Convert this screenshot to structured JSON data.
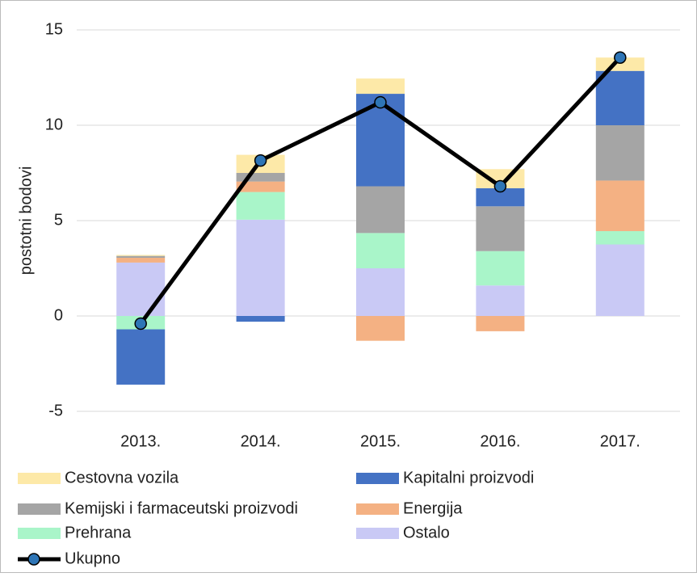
{
  "chart_data": {
    "type": "bar",
    "stacked": true,
    "ylabel": "postotni bodovi",
    "categories": [
      "2013.",
      "2014.",
      "2015.",
      "2016.",
      "2017."
    ],
    "series": [
      {
        "name": "Cestovna vozila",
        "type": "bar",
        "color": "#fde9a8",
        "values": [
          0.05,
          0.95,
          0.8,
          1.0,
          0.7
        ]
      },
      {
        "name": "Kapitalni proizvodi",
        "type": "bar",
        "color": "#4472c4",
        "values": [
          -2.9,
          -0.3,
          4.85,
          0.95,
          2.85
        ]
      },
      {
        "name": "Kemijski i farmaceutski proizvodi",
        "type": "bar",
        "color": "#a5a5a5",
        "values": [
          0.1,
          0.45,
          2.45,
          2.35,
          2.9
        ]
      },
      {
        "name": "Energija",
        "type": "bar",
        "color": "#f4b183",
        "values": [
          0.25,
          0.55,
          -1.3,
          -0.8,
          2.65
        ]
      },
      {
        "name": "Prehrana",
        "type": "bar",
        "color": "#a9f5c9",
        "values": [
          -0.7,
          1.45,
          1.85,
          1.8,
          0.7
        ]
      },
      {
        "name": "Ostalo",
        "type": "bar",
        "color": "#c9c9f5",
        "values": [
          2.8,
          5.05,
          2.5,
          1.6,
          3.75
        ]
      },
      {
        "name": "Ukupno",
        "type": "line",
        "color": "#000000",
        "marker_color": "#2e75b6",
        "values": [
          -0.4,
          8.15,
          11.2,
          6.8,
          13.55
        ]
      }
    ],
    "ylim": [
      -5,
      15
    ],
    "yticks": [
      -5,
      0,
      5,
      10,
      15
    ],
    "grid": true
  }
}
